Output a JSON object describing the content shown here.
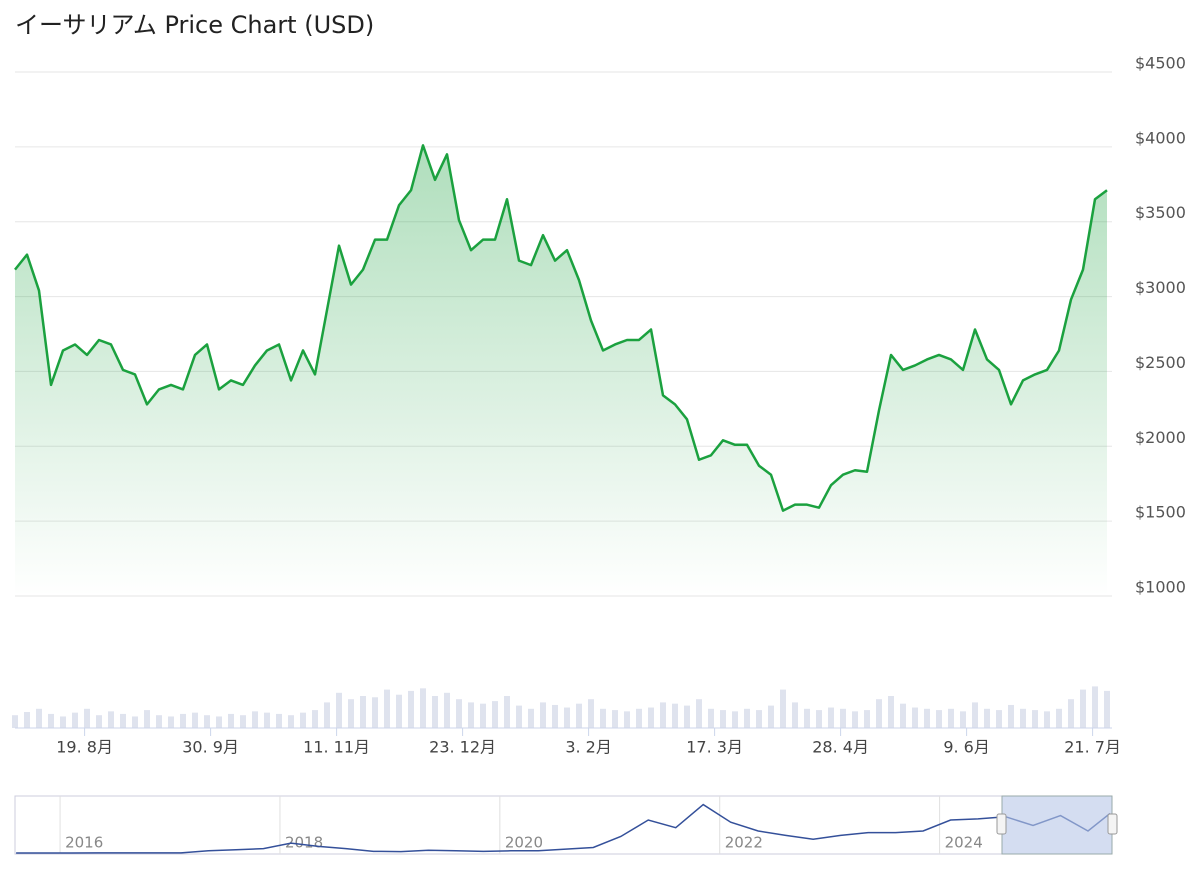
{
  "chart_data": {
    "type": "line",
    "title": "イーサリアム Price Chart (USD)",
    "series": [
      {
        "name": "Price",
        "color": "#1ba13f",
        "values": [
          3180,
          3280,
          3040,
          2410,
          2640,
          2680,
          2610,
          2710,
          2680,
          2510,
          2480,
          2280,
          2380,
          2410,
          2380,
          2610,
          2680,
          2380,
          2440,
          2410,
          2540,
          2640,
          2680,
          2440,
          2640,
          2480,
          2910,
          3340,
          3080,
          3180,
          3380,
          3380,
          3610,
          3710,
          4010,
          3780,
          3950,
          3510,
          3310,
          3380,
          3380,
          3650,
          3240,
          3210,
          3410,
          3240,
          3310,
          3110,
          2840,
          2640,
          2680,
          2710,
          2710,
          2780,
          2340,
          2280,
          2180,
          1910,
          1940,
          2040,
          2010,
          2010,
          1870,
          1810,
          1570,
          1610,
          1610,
          1590,
          1740,
          1810,
          1840,
          1830,
          2240,
          2610,
          2510,
          2540,
          2580,
          2610,
          2580,
          2510,
          2780,
          2580,
          2510,
          2280,
          2440,
          2480,
          2510,
          2640,
          2980,
          3180,
          3650,
          3710
        ]
      }
    ],
    "volumes": [
      20,
      25,
      30,
      22,
      18,
      24,
      30,
      20,
      26,
      22,
      18,
      28,
      20,
      18,
      22,
      24,
      20,
      18,
      22,
      20,
      26,
      24,
      22,
      20,
      24,
      28,
      40,
      55,
      45,
      50,
      48,
      60,
      52,
      58,
      62,
      50,
      55,
      45,
      40,
      38,
      42,
      50,
      35,
      30,
      40,
      36,
      32,
      38,
      45,
      30,
      28,
      26,
      30,
      32,
      40,
      38,
      35,
      45,
      30,
      28,
      26,
      30,
      28,
      35,
      60,
      40,
      30,
      28,
      32,
      30,
      26,
      28,
      45,
      50,
      38,
      32,
      30,
      28,
      30,
      26,
      40,
      30,
      28,
      36,
      30,
      28,
      26,
      30,
      45,
      60,
      65,
      58
    ],
    "volume_lim": [
      0,
      100
    ],
    "xlim": [
      0,
      91.25
    ],
    "xticks": [
      {
        "value": 5.8,
        "label": "19. 8月"
      },
      {
        "value": 16.3,
        "label": "30. 9月"
      },
      {
        "value": 26.8,
        "label": "11. 11月"
      },
      {
        "value": 37.3,
        "label": "23. 12月"
      },
      {
        "value": 47.8,
        "label": "3. 2月"
      },
      {
        "value": 58.3,
        "label": "17. 3月"
      },
      {
        "value": 68.8,
        "label": "28. 4月"
      },
      {
        "value": 79.3,
        "label": "9. 6月"
      },
      {
        "value": 89.8,
        "label": "21. 7月"
      }
    ],
    "ylim": [
      1000,
      4500
    ],
    "yticks": [
      {
        "value": 1000,
        "label": "$1000"
      },
      {
        "value": 1500,
        "label": "$1500"
      },
      {
        "value": 2000,
        "label": "$2000"
      },
      {
        "value": 2500,
        "label": "$2500"
      },
      {
        "value": 3000,
        "label": "$3000"
      },
      {
        "value": 3500,
        "label": "$3500"
      },
      {
        "value": 4000,
        "label": "$4000"
      },
      {
        "value": 4500,
        "label": "$4500"
      }
    ],
    "grid": true,
    "navigator": {
      "color": "#34509a",
      "x": [
        2015.6,
        2015.85,
        2016.1,
        2016.35,
        2016.6,
        2016.85,
        2017.1,
        2017.35,
        2017.6,
        2017.85,
        2018.1,
        2018.35,
        2018.6,
        2018.85,
        2019.1,
        2019.35,
        2019.6,
        2019.85,
        2020.1,
        2020.35,
        2020.6,
        2020.85,
        2021.1,
        2021.35,
        2021.6,
        2021.85,
        2022.1,
        2022.35,
        2022.6,
        2022.85,
        2023.1,
        2023.35,
        2023.6,
        2023.85,
        2024.1,
        2024.35,
        2024.6,
        2024.85,
        2025.1,
        2025.35,
        2025.55
      ],
      "values": [
        1,
        1,
        5,
        12,
        11,
        8,
        15,
        200,
        300,
        400,
        900,
        600,
        400,
        150,
        130,
        250,
        200,
        150,
        200,
        200,
        350,
        500,
        1500,
        3000,
        2300,
        4400,
        2800,
        2000,
        1600,
        1250,
        1600,
        1850,
        1850,
        2000,
        3000,
        3100,
        3300,
        2500,
        3400,
        2000,
        3600
      ],
      "xlim": [
        2015.59,
        2025.55
      ],
      "ylim": [
        0,
        5000
      ],
      "xticks": [
        2016,
        2018,
        2020,
        2022,
        2024
      ]
    }
  }
}
